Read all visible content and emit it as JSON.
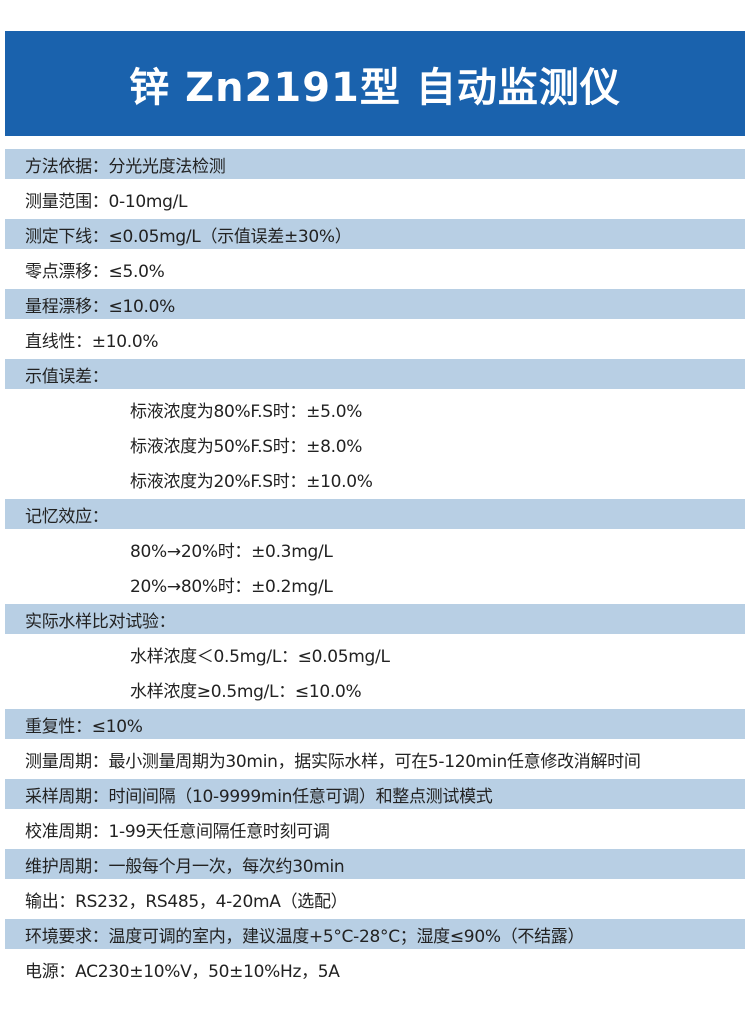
{
  "title": "锌 Zn2191型 自动监测仪",
  "colors": {
    "header": "#1a62ad",
    "row_shade": "#b8cfe4"
  },
  "rows": [
    {
      "text": "方法依据：分光光度法检测",
      "shade": true
    },
    {
      "text": "测量范围：0-10mg/L",
      "shade": false
    },
    {
      "text": "测定下线：≤0.05mg/L（示值误差±30%）",
      "shade": true
    },
    {
      "text": "零点漂移：≤5.0%",
      "shade": false
    },
    {
      "text": "量程漂移：≤10.0%",
      "shade": true
    },
    {
      "text": "直线性：±10.0%",
      "shade": false
    },
    {
      "text": "示值误差：",
      "shade": true
    },
    {
      "text": "标液浓度为80%F.S时：±5.0%",
      "indent": true
    },
    {
      "text": "标液浓度为50%F.S时：±8.0%",
      "indent": true
    },
    {
      "text": "标液浓度为20%F.S时：±10.0%",
      "indent": true
    },
    {
      "text": "记忆效应：",
      "shade": true
    },
    {
      "text": "80%→20%时：±0.3mg/L",
      "indent": true
    },
    {
      "text": "20%→80%时：±0.2mg/L",
      "indent": true
    },
    {
      "text": "实际水样比对试验：",
      "shade": true
    },
    {
      "text": "水样浓度＜0.5mg/L：≤0.05mg/L",
      "indent": true
    },
    {
      "text": "水样浓度≥0.5mg/L：≤10.0%",
      "indent": true
    },
    {
      "text": "重复性：≤10%",
      "shade": true
    },
    {
      "text": "测量周期：最小测量周期为30min，据实际水样，可在5-120min任意修改消解时间",
      "shade": false
    },
    {
      "text": "采样周期：时间间隔（10-9999min任意可调）和整点测试模式",
      "shade": true
    },
    {
      "text": "校准周期：1-99天任意间隔任意时刻可调",
      "shade": false
    },
    {
      "text": "维护周期：一般每个月一次，每次约30min",
      "shade": true
    },
    {
      "text": "输出：RS232，RS485，4-20mA（选配）",
      "shade": false
    },
    {
      "text": "环境要求：温度可调的室内，建议温度+5°C-28°C；湿度≤90%（不结露）",
      "shade": true
    },
    {
      "text": "电源：AC230±10%V，50±10%Hz，5A",
      "shade": false
    }
  ]
}
